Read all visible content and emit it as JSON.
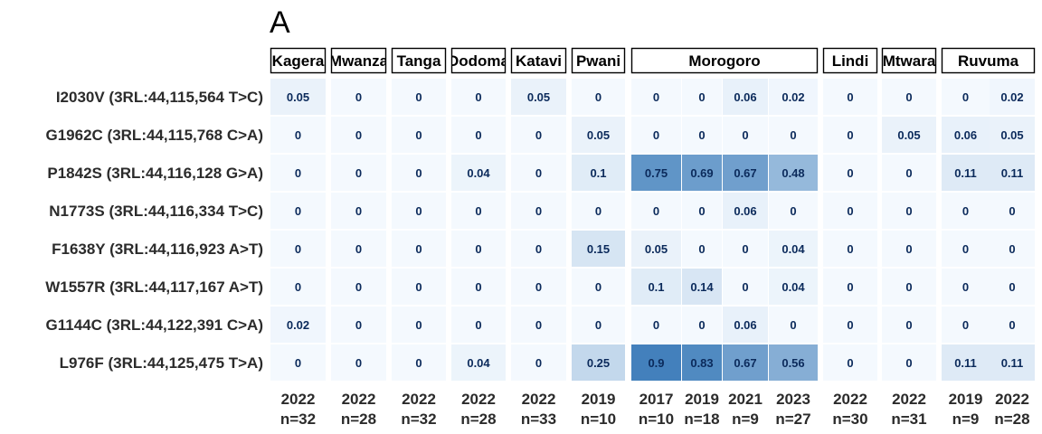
{
  "panel_label": "A",
  "chart_data": {
    "type": "heatmap",
    "rows": [
      "I2030V (3RL:44,115,564 T>C)",
      "G1962C (3RL:44,115,768 C>A)",
      "P1842S (3RL:44,116,128 G>A)",
      "N1773S (3RL:44,116,334 T>C)",
      "F1638Y (3RL:44,116,923 A>T)",
      "W1557R (3RL:44,117,167 A>T)",
      "G1144C (3RL:44,122,391 C>A)",
      "L976F (3RL:44,125,475 T>A)"
    ],
    "facets": [
      {
        "label": "Kagera",
        "columns": [
          {
            "year": "2022",
            "n": "n=32"
          }
        ]
      },
      {
        "label": "Mwanza",
        "columns": [
          {
            "year": "2022",
            "n": "n=28"
          }
        ]
      },
      {
        "label": "Tanga",
        "columns": [
          {
            "year": "2022",
            "n": "n=32"
          }
        ]
      },
      {
        "label": "Dodoma",
        "columns": [
          {
            "year": "2022",
            "n": "n=28"
          }
        ]
      },
      {
        "label": "Katavi",
        "columns": [
          {
            "year": "2022",
            "n": "n=33"
          }
        ]
      },
      {
        "label": "Pwani",
        "columns": [
          {
            "year": "2019",
            "n": "n=10"
          }
        ]
      },
      {
        "label": "Morogoro",
        "columns": [
          {
            "year": "2017",
            "n": "n=10"
          },
          {
            "year": "2019",
            "n": "n=18"
          },
          {
            "year": "2021",
            "n": "n=9"
          },
          {
            "year": "2023",
            "n": "n=27"
          }
        ]
      },
      {
        "label": "Lindi",
        "columns": [
          {
            "year": "2022",
            "n": "n=30"
          }
        ]
      },
      {
        "label": "Mtwara",
        "columns": [
          {
            "year": "2022",
            "n": "n=31"
          }
        ]
      },
      {
        "label": "Ruvuma",
        "columns": [
          {
            "year": "2019",
            "n": "n=9"
          },
          {
            "year": "2022",
            "n": "n=28"
          }
        ]
      }
    ],
    "values": [
      [
        0.05,
        0,
        0,
        0,
        0.05,
        0,
        0,
        0,
        0.06,
        0.02,
        0,
        0,
        0,
        0.02
      ],
      [
        0,
        0,
        0,
        0,
        0,
        0.05,
        0,
        0,
        0,
        0,
        0,
        0.05,
        0.06,
        0.05
      ],
      [
        0,
        0,
        0,
        0.04,
        0,
        0.1,
        0.75,
        0.69,
        0.67,
        0.48,
        0,
        0,
        0.11,
        0.11
      ],
      [
        0,
        0,
        0,
        0,
        0,
        0,
        0,
        0,
        0.06,
        0,
        0,
        0,
        0,
        0
      ],
      [
        0,
        0,
        0,
        0,
        0,
        0.15,
        0.05,
        0,
        0,
        0.04,
        0,
        0,
        0,
        0
      ],
      [
        0,
        0,
        0,
        0,
        0,
        0,
        0.1,
        0.14,
        0,
        0.04,
        0,
        0,
        0,
        0
      ],
      [
        0.02,
        0,
        0,
        0,
        0,
        0,
        0,
        0,
        0.06,
        0,
        0,
        0,
        0,
        0
      ],
      [
        0,
        0,
        0,
        0.04,
        0,
        0.25,
        0.9,
        0.83,
        0.67,
        0.56,
        0,
        0,
        0.11,
        0.11
      ]
    ],
    "color_scale": {
      "low": "#f4f9fe",
      "high": "#2f73b5",
      "domain": [
        0,
        1
      ]
    },
    "value_label_color": "#0b2a5b"
  }
}
